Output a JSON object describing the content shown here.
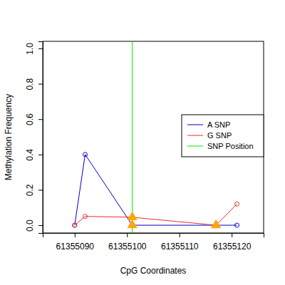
{
  "chart_data": {
    "type": "line",
    "x_label": "CpG Coordinates",
    "y_label": "Methylation Frequency",
    "x": [
      61355090,
      61355092,
      61355101,
      61355117,
      61355121
    ],
    "series": [
      {
        "name": "A SNP",
        "color": "#0000cd",
        "marker": "circle",
        "values": [
          0,
          0.4,
          0,
          0,
          0
        ]
      },
      {
        "name": "G SNP",
        "color": "#ee2c2c",
        "marker": "circle",
        "values": [
          0,
          0.05,
          0.045,
          0,
          0.12
        ]
      }
    ],
    "snp_lines": [
      {
        "name": "SNP Position",
        "color": "#00ee00",
        "x": 61355101
      }
    ],
    "snp_markers": {
      "color": "#ffa500",
      "marker": "triangle",
      "x": [
        61355101,
        61355101,
        61355117
      ],
      "values": [
        0.045,
        0,
        0
      ]
    },
    "xlim": [
      61355083.9,
      61355126.1
    ],
    "ylim": [
      -0.044,
      1.04
    ],
    "xticks": [
      61355090,
      61355100,
      61355110,
      61355120
    ],
    "yticks": [
      {
        "value": 0,
        "label": "0.0"
      },
      0.2,
      0.4,
      0.6,
      0.8,
      {
        "value": 1,
        "label": "1.0"
      }
    ],
    "legend": "right",
    "grid": false
  }
}
